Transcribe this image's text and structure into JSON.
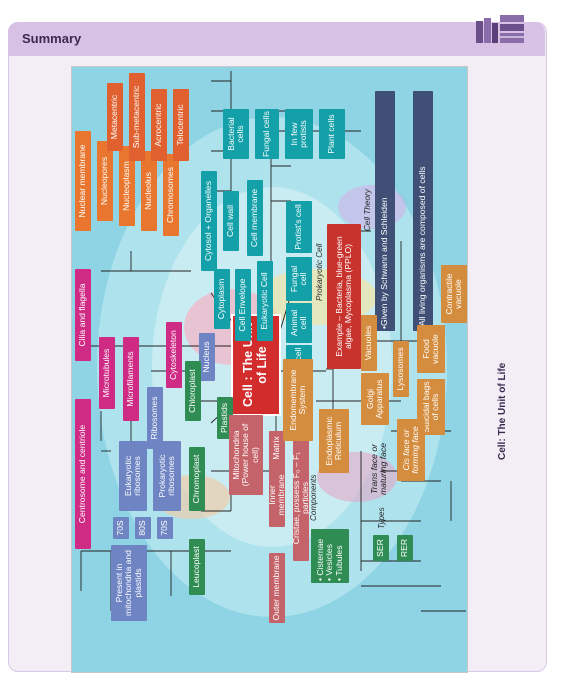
{
  "header": {
    "title": "Summary"
  },
  "caption": "Cell: The Unit of Life",
  "center": "Cell : The Unit of Life",
  "labels": {
    "components": "Components",
    "types": "Types",
    "cell_theory": "Cell Theory",
    "prokaryotic_cell": "Prokaryotic Cell"
  },
  "nodes": {
    "cytoplasm": "Cytoplasm",
    "cell_envelope": "Cell Envelope",
    "eukaryotic_cell": "Eukaryotic Cell",
    "nucleus": "Nucleus",
    "cytoskeleton": "Cytoskeleton",
    "cytosol_organelles": "Cytosol + Organelles",
    "cell_wall": "Cell wall",
    "cell_membrane": "Cell membrane",
    "bacterial_cells": "Bacterial cells",
    "fungal_cells": "Fungal cells",
    "few_protists": "In few protists",
    "plant_cells": "Plant cells",
    "protists_cell": "Protist's cell",
    "fungal_cell": "Fungal cell",
    "animal_cell": "Animal cell",
    "plant_cell": "Plant cell",
    "prokaryotic_example": "Example – Bacteria, blue-green algae, Mycoplasma (PPLO)",
    "schwann_schleiden": "•Given by Schwann and Schleiden",
    "all_living": "•All living organisms are composed of cells",
    "nuclear_membrane": "Nuclear membrane",
    "nucleopores": "Nucleopores",
    "nucleoplasm": "Nucleoplasm",
    "nucleolus": "Nucleolus",
    "chromosomes": "Chromosomes",
    "metacentric": "Metacentric",
    "sub_metacentric": "Sub-metacentric",
    "acrocentric": "Acrocentric",
    "telocentric": "Telocentric",
    "cilia_flagella": "Cilia and flagella",
    "microtubules": "Microtubules",
    "microfilaments": "Microfilaments",
    "centrosome": "Centrosome and centriole",
    "ribosomes": "Ribosomes",
    "eukaryotic_ribosomes": "Eukaryotic ribosomes",
    "prokaryotic_ribosomes": "Prokaryotic ribosomes",
    "r70s_a": "70S",
    "r80s": "80S",
    "r70s_b": "70S",
    "present_in": "Present in mitochondria and plastids",
    "plastids": "Plastids",
    "chloroplast": "Chloroplast",
    "chromoplast": "Chromoplast",
    "leucoplast": "Leucoplast",
    "mitochondria": "Mitochondria (Power house of cell)",
    "matrix": "Matrix",
    "inner_membrane": "Inner membrane",
    "cristae": "Cristae, possess F₀ – F₁ particles",
    "outer_membrane": "Outer membrane",
    "endomembrane": "Endomembrane System",
    "er": "Endoplasmic Reticulum",
    "golgi": "Golgi Apparatus",
    "lysosomes": "Lysosomes",
    "vacuoles": "Vacuoles",
    "food_vacuole": "Food vacuole",
    "contractile_vacuole": "Contractile vacuole",
    "suicidal_bags": "Suicidal bags of cells",
    "trans_face": "Trans face or maturing face",
    "cis_face": "Cis face or forming face",
    "cisternae": "• Cisternae\n• Vesicles\n• Tubules",
    "ser": "SER",
    "rer": "RER"
  },
  "colors": {
    "orange": "#e8762f",
    "pink": "#cf2a84",
    "teal": "#13a0a8",
    "green": "#2f8d54",
    "blue": "#6e84c3",
    "red": "#c8342d",
    "brown": "#d48c3e",
    "rose": "#c4636a",
    "navy": "#3f4f76",
    "frame": "#d7c1e4",
    "background": "#8fd4e4"
  },
  "icons": [
    "books-icon"
  ]
}
